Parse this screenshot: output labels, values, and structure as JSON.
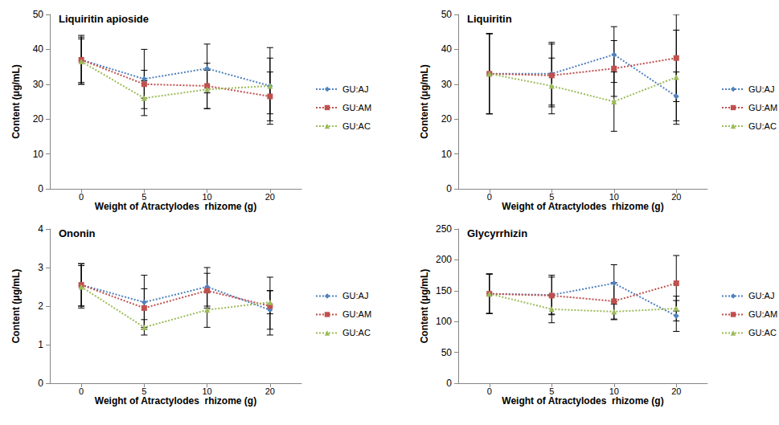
{
  "chart_data": [
    {
      "type": "line",
      "title": "Liquiritin apioside",
      "x_label": "Weight of Atractylodes  rhizome (g)",
      "y_label": "Content (μg/mL)",
      "categories": [
        "0",
        "5",
        "10",
        "20"
      ],
      "ylim": [
        0,
        50
      ],
      "yticks": [
        0,
        10,
        20,
        30,
        40,
        50
      ],
      "grid": false,
      "series": [
        {
          "name": "GU:AJ",
          "color": "#4F81BD",
          "marker": "diamond",
          "line_style": "dotted",
          "values": [
            37,
            31.5,
            34.5,
            29.5
          ],
          "errors": [
            7,
            8.5,
            7,
            8
          ]
        },
        {
          "name": "GU:AM",
          "color": "#C0504D",
          "marker": "square",
          "line_style": "dotted",
          "values": [
            37,
            30,
            29.5,
            26.5
          ],
          "errors": [
            6.5,
            4,
            6.5,
            7
          ]
        },
        {
          "name": "GU:AC",
          "color": "#9BBB59",
          "marker": "triangle",
          "line_style": "dotted",
          "values": [
            36.5,
            26,
            28.5,
            29.5
          ],
          "errors": [
            6.5,
            5,
            5.5,
            11
          ]
        }
      ]
    },
    {
      "type": "line",
      "title": "Liquiritin",
      "x_label": "Weight of Atractylodes  rhizome (g)",
      "y_label": "Content (μg/mL)",
      "categories": [
        "0",
        "5",
        "10",
        "20"
      ],
      "ylim": [
        0,
        50
      ],
      "yticks": [
        0,
        10,
        20,
        30,
        40,
        50
      ],
      "grid": false,
      "series": [
        {
          "name": "GU:AJ",
          "color": "#4F81BD",
          "marker": "diamond",
          "line_style": "dotted",
          "values": [
            33,
            33,
            38.5,
            26.5
          ],
          "errors": [
            11.5,
            9,
            8,
            7
          ]
        },
        {
          "name": "GU:AM",
          "color": "#C0504D",
          "marker": "square",
          "line_style": "dotted",
          "values": [
            33,
            32.5,
            34.5,
            37.5
          ],
          "errors": [
            11.5,
            9,
            8,
            12.5
          ]
        },
        {
          "name": "GU:AC",
          "color": "#9BBB59",
          "marker": "triangle",
          "line_style": "dotted",
          "values": [
            33,
            29.5,
            25,
            32
          ],
          "errors": [
            11.5,
            8,
            8.5,
            13.5
          ]
        }
      ]
    },
    {
      "type": "line",
      "title": "Ononin",
      "x_label": "Weight of Atractylodes  rhizome (g)",
      "y_label": "Content (μg/mL)",
      "categories": [
        "0",
        "5",
        "10",
        "20"
      ],
      "ylim": [
        0,
        4
      ],
      "yticks": [
        0,
        1,
        2,
        3,
        4
      ],
      "grid": false,
      "series": [
        {
          "name": "GU:AJ",
          "color": "#4F81BD",
          "marker": "diamond",
          "line_style": "dotted",
          "values": [
            2.55,
            2.1,
            2.5,
            1.9
          ],
          "errors": [
            0.55,
            0.7,
            0.5,
            0.5
          ]
        },
        {
          "name": "GU:AM",
          "color": "#C0504D",
          "marker": "square",
          "line_style": "dotted",
          "values": [
            2.55,
            1.95,
            2.4,
            2.0
          ],
          "errors": [
            0.55,
            0.5,
            0.45,
            0.75
          ]
        },
        {
          "name": "GU:AC",
          "color": "#9BBB59",
          "marker": "triangle",
          "line_style": "dotted",
          "values": [
            2.5,
            1.45,
            1.9,
            2.1
          ],
          "errors": [
            0.55,
            0.2,
            0.45,
            0.3
          ]
        }
      ]
    },
    {
      "type": "line",
      "title": "Glycyrrhizin",
      "x_label": "Weight of Atractylodes  rhizome (g)",
      "y_label": "Content (μg/mL)",
      "categories": [
        "0",
        "5",
        "10",
        "20"
      ],
      "ylim": [
        0,
        250
      ],
      "yticks": [
        0,
        50,
        100,
        150,
        200,
        250
      ],
      "grid": false,
      "series": [
        {
          "name": "GU:AJ",
          "color": "#4F81BD",
          "marker": "diamond",
          "line_style": "dotted",
          "values": [
            145,
            143,
            162,
            109
          ],
          "errors": [
            32,
            32,
            30,
            25
          ]
        },
        {
          "name": "GU:AM",
          "color": "#C0504D",
          "marker": "square",
          "line_style": "dotted",
          "values": [
            145,
            142,
            133,
            162
          ],
          "errors": [
            32,
            30,
            30,
            45
          ]
        },
        {
          "name": "GU:AC",
          "color": "#9BBB59",
          "marker": "triangle",
          "line_style": "dotted",
          "values": [
            145,
            120,
            116,
            121
          ],
          "errors": [
            32,
            22,
            12,
            20
          ]
        }
      ]
    }
  ]
}
